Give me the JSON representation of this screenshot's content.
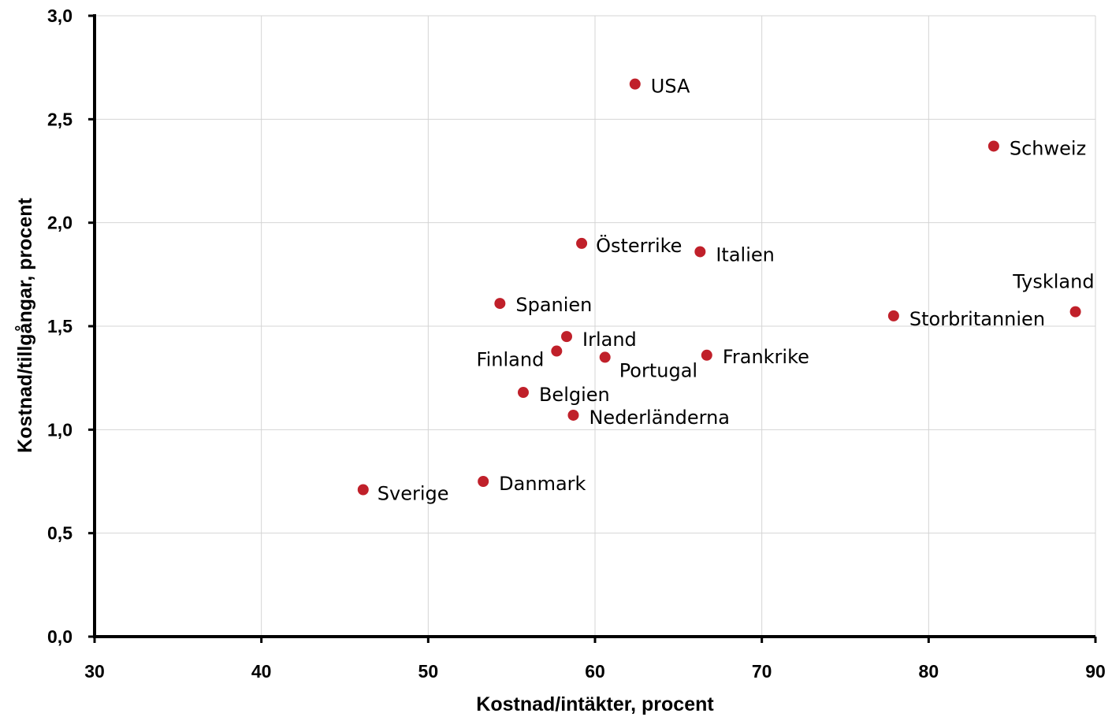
{
  "chart_data": {
    "type": "scatter",
    "xlabel": "Kostnad/intäkter, procent",
    "ylabel": "Kostnad/tillgångar, procent",
    "xlim": [
      30,
      90
    ],
    "ylim": [
      0,
      3
    ],
    "grid": true,
    "marker_color": "#c0202a",
    "x_ticks": [
      30,
      40,
      50,
      60,
      70,
      80,
      90
    ],
    "x_tick_labels": [
      "30",
      "40",
      "50",
      "60",
      "70",
      "80",
      "90"
    ],
    "y_ticks": [
      0,
      0.5,
      1,
      1.5,
      2,
      2.5,
      3
    ],
    "y_tick_labels": [
      "0,0",
      "0,5",
      "1,0",
      "1,5",
      "2,0",
      "2,5",
      "3,0"
    ],
    "points": [
      {
        "label": "USA",
        "x": 62.4,
        "y": 2.67
      },
      {
        "label": "Schweiz",
        "x": 83.9,
        "y": 2.37
      },
      {
        "label": "Österrike",
        "x": 59.2,
        "y": 1.9
      },
      {
        "label": "Italien",
        "x": 66.3,
        "y": 1.86
      },
      {
        "label": "Tyskland",
        "x": 88.8,
        "y": 1.57
      },
      {
        "label": "Spanien",
        "x": 54.3,
        "y": 1.61
      },
      {
        "label": "Storbritannien",
        "x": 77.9,
        "y": 1.55
      },
      {
        "label": "Irland",
        "x": 58.3,
        "y": 1.45
      },
      {
        "label": "Finland",
        "x": 57.7,
        "y": 1.38
      },
      {
        "label": "Portugal",
        "x": 60.6,
        "y": 1.35
      },
      {
        "label": "Frankrike",
        "x": 66.7,
        "y": 1.36
      },
      {
        "label": "Belgien",
        "x": 55.7,
        "y": 1.18
      },
      {
        "label": "Nederländerna",
        "x": 58.7,
        "y": 1.07
      },
      {
        "label": "Danmark",
        "x": 53.3,
        "y": 0.75
      },
      {
        "label": "Sverige",
        "x": 46.1,
        "y": 0.71
      }
    ]
  }
}
